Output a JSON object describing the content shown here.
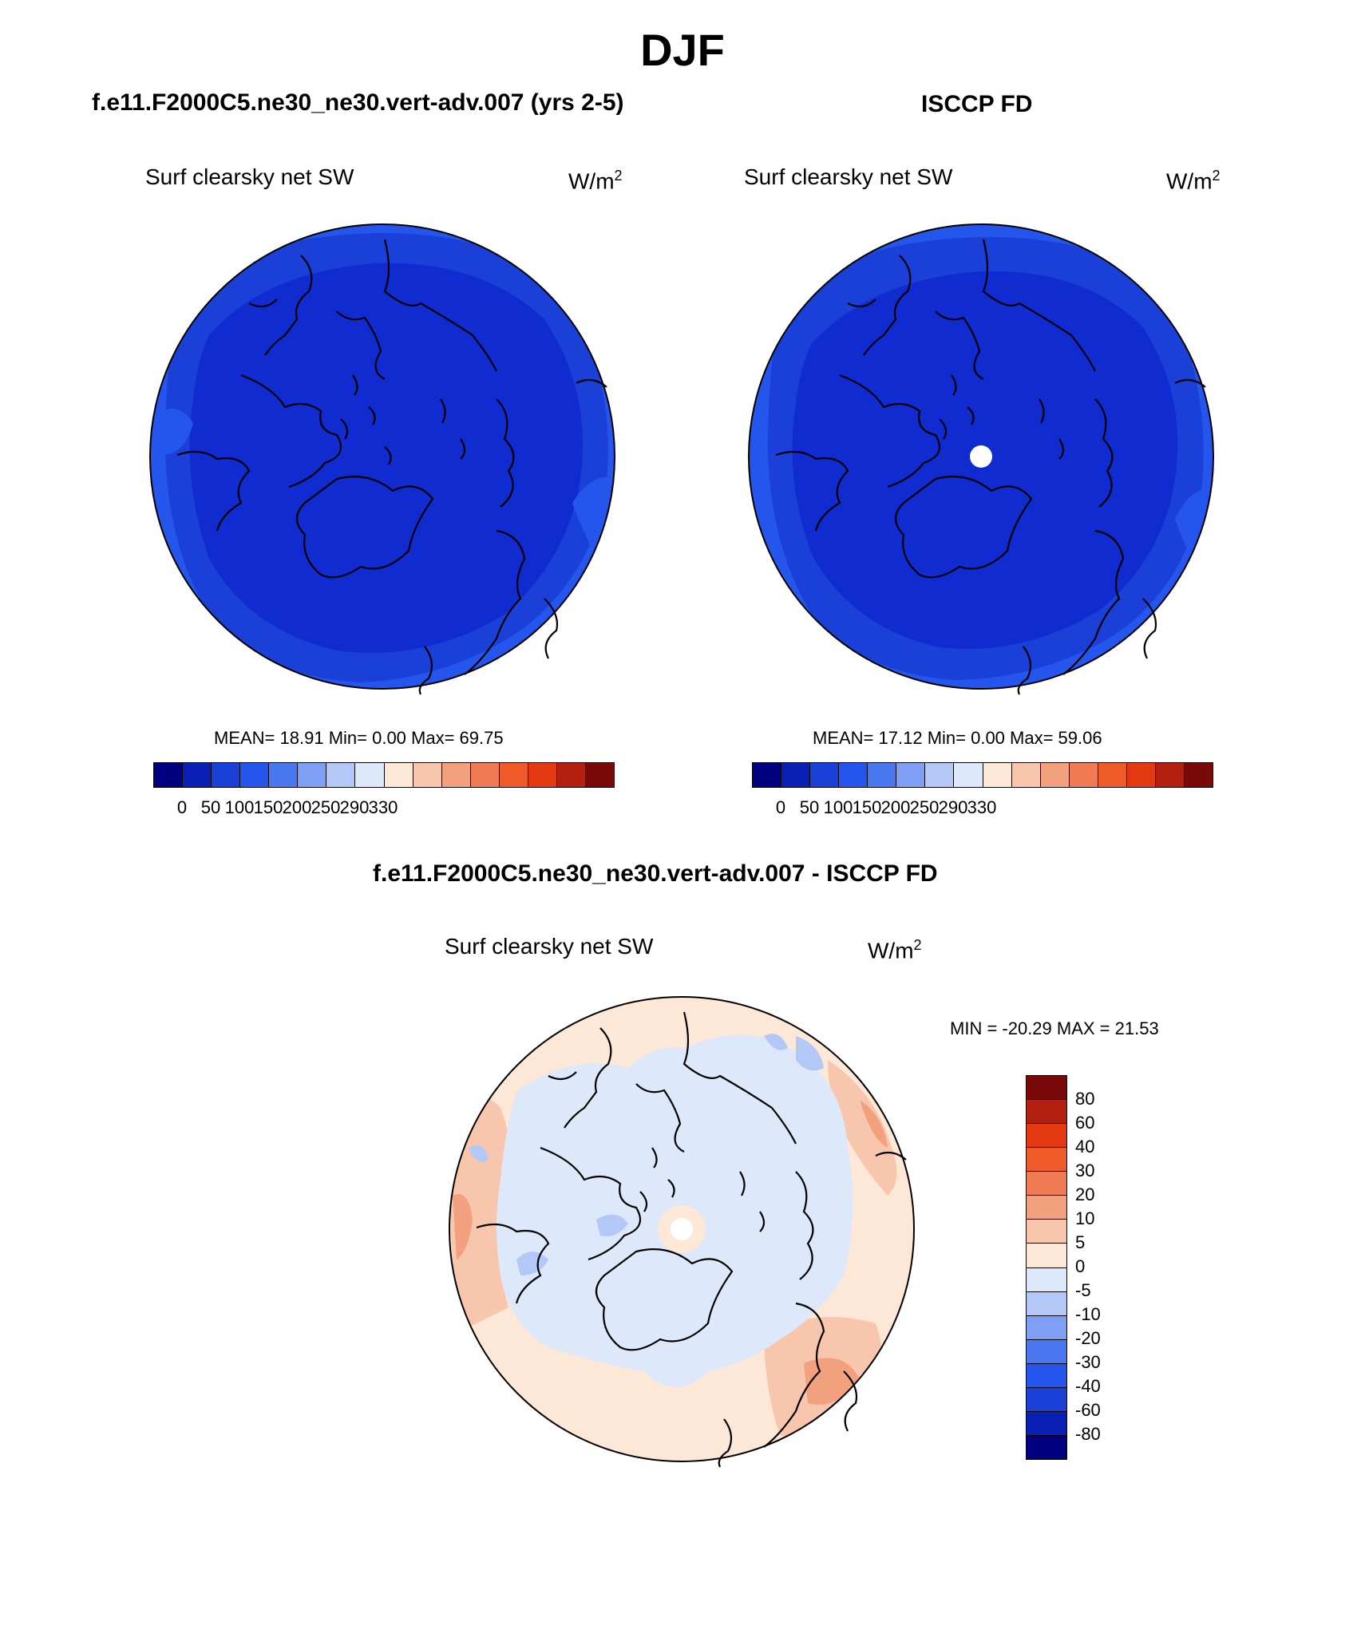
{
  "title": "DJF",
  "panels": {
    "model": {
      "header": "f.e11.F2000C5.ne30_ne30.vert-adv.007 (yrs 2-5)",
      "variable": "Surf clearsky net SW",
      "units": "W/m",
      "units_exp": "2",
      "stats": "MEAN=  18.91  Min=   0.00  Max=  69.75"
    },
    "obs": {
      "header": "ISCCP FD",
      "variable": "Surf clearsky net SW",
      "units": "W/m",
      "units_exp": "2",
      "stats": "MEAN=  17.12  Min=   0.00  Max=  59.06"
    },
    "diff": {
      "header": "f.e11.F2000C5.ne30_ne30.vert-adv.007 - ISCCP FD",
      "variable": "Surf clearsky net SW",
      "units": "W/m",
      "units_exp": "2",
      "stats": "MIN = -20.29 MAX =  21.53"
    }
  },
  "abs_colorbar": {
    "colors": [
      "#000080",
      "#0a1fb4",
      "#1a40d8",
      "#2456ee",
      "#4a78f0",
      "#7e9ff3",
      "#b3c8f6",
      "#dde8fb",
      "#fde7d6",
      "#f8c6ad",
      "#f3a07f",
      "#f07b52",
      "#ee5a28",
      "#e43810",
      "#b32010",
      "#7a0a0a"
    ],
    "labels": [
      "0",
      "50",
      "100",
      "150",
      "200",
      "250",
      "290",
      "330"
    ]
  },
  "diff_colorbar": {
    "colors": [
      "#7a0a0a",
      "#b32010",
      "#e43810",
      "#ee5a28",
      "#f07b52",
      "#f3a07f",
      "#f8c6ad",
      "#fde7d6",
      "#dde8fb",
      "#b3c8f6",
      "#7e9ff3",
      "#4a78f0",
      "#2456ee",
      "#1a40d8",
      "#0a1fb4",
      "#000080"
    ],
    "labels": [
      "80",
      "60",
      "40",
      "30",
      "20",
      "10",
      "5",
      "0",
      "-5",
      "-10",
      "-20",
      "-30",
      "-40",
      "-60",
      "-80"
    ]
  },
  "colors": {
    "abs_deep": "#102bd0",
    "abs_mid": "#1a40d8",
    "abs_outer": "#2456ee",
    "diff_light_blue": "#dde8fb",
    "diff_light_orange": "#fde7d6",
    "diff_orange": "#f8c6ad",
    "diff_red": "#f3a07f",
    "diff_blue": "#b3c8f6"
  }
}
